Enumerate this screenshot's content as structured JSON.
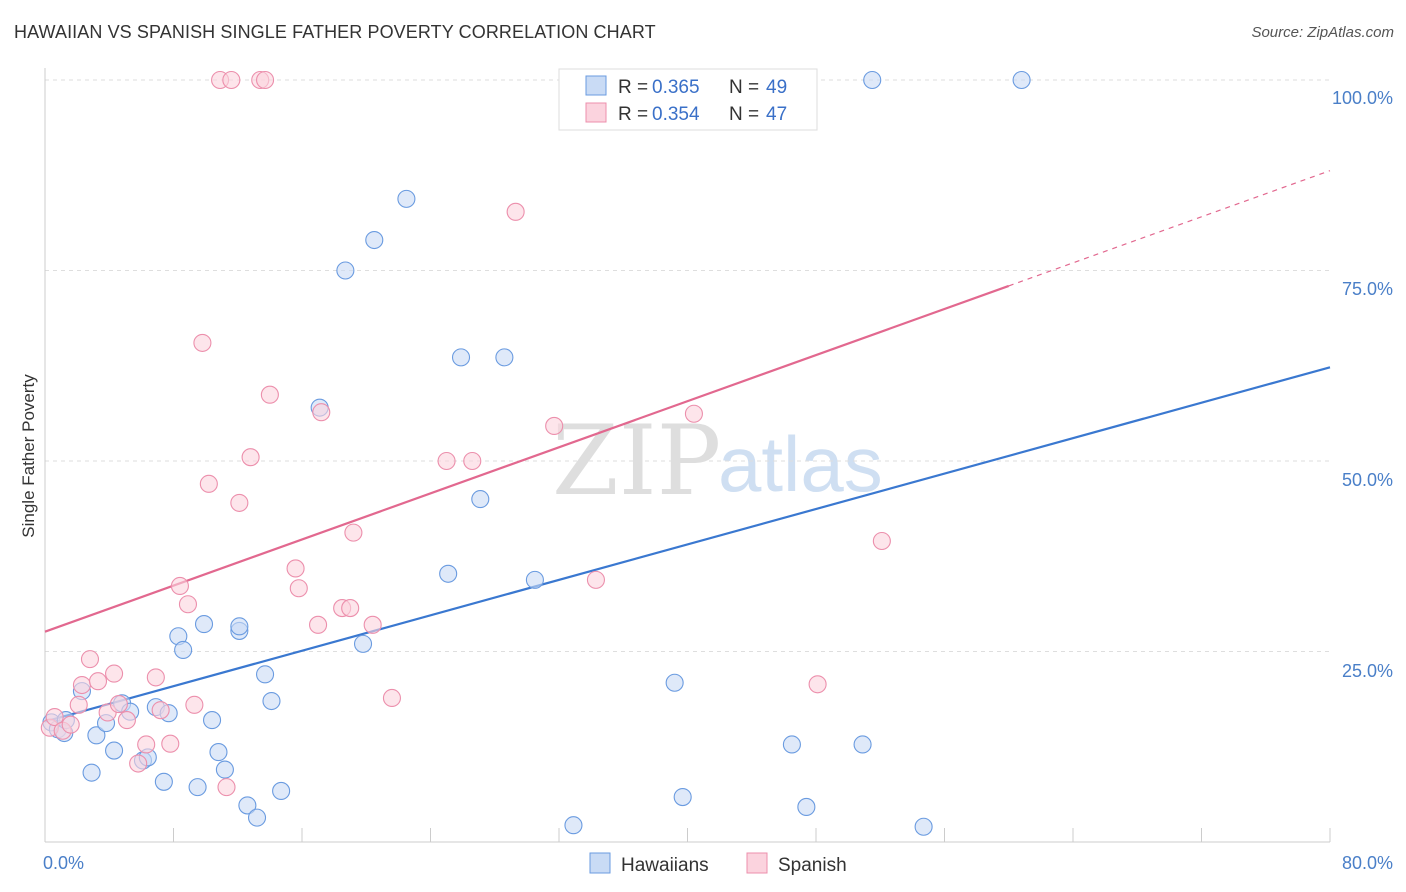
{
  "title": "HAWAIIAN VS SPANISH SINGLE FATHER POVERTY CORRELATION CHART",
  "source": "Source: ZipAtlas.com",
  "watermark": {
    "zip": "ZIP",
    "atlas": "atlas"
  },
  "colors": {
    "hawaiians_fill": "#c9dbf5",
    "hawaiians_stroke": "#6a9be0",
    "hawaiians_line": "#3a78d0",
    "spanish_fill": "#fbd3de",
    "spanish_stroke": "#ec8fac",
    "spanish_line": "#e2688f"
  },
  "legend": {
    "rows": [
      {
        "r_label": "R = ",
        "r_value": "0.365",
        "n_label": "N = ",
        "n_value": "49"
      },
      {
        "r_label": "R = ",
        "r_value": "0.354",
        "n_label": "N = ",
        "n_value": "47"
      }
    ]
  },
  "bottom_legend": [
    "Hawaiians",
    "Spanish"
  ],
  "chart_data": {
    "type": "scatter",
    "title": "HAWAIIAN VS SPANISH SINGLE FATHER POVERTY CORRELATION CHART",
    "xlabel": "",
    "ylabel": "Single Father Poverty",
    "xlim": [
      0,
      80
    ],
    "ylim": [
      0,
      100
    ],
    "x_tick_labels": [
      "0.0%",
      "80.0%"
    ],
    "y_tick_labels": [
      "100.0%",
      "75.0%",
      "50.0%",
      "25.0%"
    ],
    "y_ticks": [
      100,
      75,
      50,
      25
    ],
    "legend_position": "top-center",
    "series": [
      {
        "name": "Hawaiians",
        "r": 0.365,
        "n": 49,
        "trend": {
          "x0": 0,
          "y0": 15.8,
          "x1": 80,
          "y1": 62.3,
          "dashed_from": null
        },
        "points": [
          [
            0.4,
            15.7
          ],
          [
            0.8,
            14.8
          ],
          [
            1.2,
            14.3
          ],
          [
            1.3,
            16.0
          ],
          [
            2.3,
            19.8
          ],
          [
            2.9,
            9.1
          ],
          [
            3.2,
            14.0
          ],
          [
            3.8,
            15.6
          ],
          [
            4.3,
            12.0
          ],
          [
            4.8,
            18.2
          ],
          [
            5.3,
            17.1
          ],
          [
            6.1,
            10.7
          ],
          [
            6.4,
            11.1
          ],
          [
            6.9,
            17.7
          ],
          [
            7.4,
            7.9
          ],
          [
            7.7,
            16.9
          ],
          [
            8.3,
            27.0
          ],
          [
            8.6,
            25.2
          ],
          [
            9.5,
            7.2
          ],
          [
            9.9,
            28.6
          ],
          [
            10.4,
            16.0
          ],
          [
            10.8,
            11.8
          ],
          [
            11.2,
            9.5
          ],
          [
            12.1,
            27.7
          ],
          [
            12.1,
            28.3
          ],
          [
            12.6,
            4.8
          ],
          [
            13.2,
            3.2
          ],
          [
            13.7,
            22.0
          ],
          [
            14.1,
            18.5
          ],
          [
            14.7,
            6.7
          ],
          [
            17.1,
            57.0
          ],
          [
            18.7,
            75.0
          ],
          [
            19.8,
            26.0
          ],
          [
            20.5,
            79.0
          ],
          [
            22.5,
            84.4
          ],
          [
            25.1,
            35.2
          ],
          [
            25.9,
            63.6
          ],
          [
            27.1,
            45.0
          ],
          [
            28.6,
            63.6
          ],
          [
            30.5,
            34.4
          ],
          [
            32.9,
            2.2
          ],
          [
            39.2,
            20.9
          ],
          [
            39.7,
            5.9
          ],
          [
            46.5,
            12.8
          ],
          [
            47.4,
            4.6
          ],
          [
            50.9,
            12.8
          ],
          [
            51.5,
            100.0
          ],
          [
            54.7,
            2.0
          ],
          [
            60.8,
            100.0
          ]
        ]
      },
      {
        "name": "Spanish",
        "r": 0.354,
        "n": 47,
        "trend": {
          "x0": 0,
          "y0": 27.6,
          "x1": 80,
          "y1": 88.1,
          "dashed_from": 60
        },
        "points": [
          [
            0.3,
            15.0
          ],
          [
            0.6,
            16.4
          ],
          [
            1.1,
            14.6
          ],
          [
            1.6,
            15.4
          ],
          [
            2.1,
            18.0
          ],
          [
            2.3,
            20.6
          ],
          [
            2.8,
            24.0
          ],
          [
            3.3,
            21.1
          ],
          [
            3.9,
            17.0
          ],
          [
            4.3,
            22.1
          ],
          [
            4.6,
            18.1
          ],
          [
            5.1,
            16.0
          ],
          [
            5.8,
            10.3
          ],
          [
            6.3,
            12.8
          ],
          [
            6.9,
            21.6
          ],
          [
            7.2,
            17.3
          ],
          [
            7.8,
            12.9
          ],
          [
            8.4,
            33.6
          ],
          [
            8.9,
            31.2
          ],
          [
            9.3,
            18.0
          ],
          [
            9.8,
            65.5
          ],
          [
            10.2,
            47.0
          ],
          [
            10.9,
            100.0
          ],
          [
            11.3,
            7.2
          ],
          [
            11.6,
            100.0
          ],
          [
            12.1,
            44.5
          ],
          [
            12.8,
            50.5
          ],
          [
            13.4,
            100.0
          ],
          [
            13.7,
            100.0
          ],
          [
            14.0,
            58.7
          ],
          [
            15.6,
            35.9
          ],
          [
            15.8,
            33.3
          ],
          [
            17.0,
            28.5
          ],
          [
            17.2,
            56.4
          ],
          [
            18.5,
            30.7
          ],
          [
            19.0,
            30.7
          ],
          [
            19.2,
            40.6
          ],
          [
            20.4,
            28.5
          ],
          [
            21.6,
            18.9
          ],
          [
            25.0,
            50.0
          ],
          [
            26.6,
            50.0
          ],
          [
            29.3,
            82.7
          ],
          [
            31.7,
            54.6
          ],
          [
            34.3,
            34.4
          ],
          [
            40.4,
            56.2
          ],
          [
            48.1,
            20.7
          ],
          [
            52.1,
            39.5
          ]
        ]
      }
    ]
  }
}
